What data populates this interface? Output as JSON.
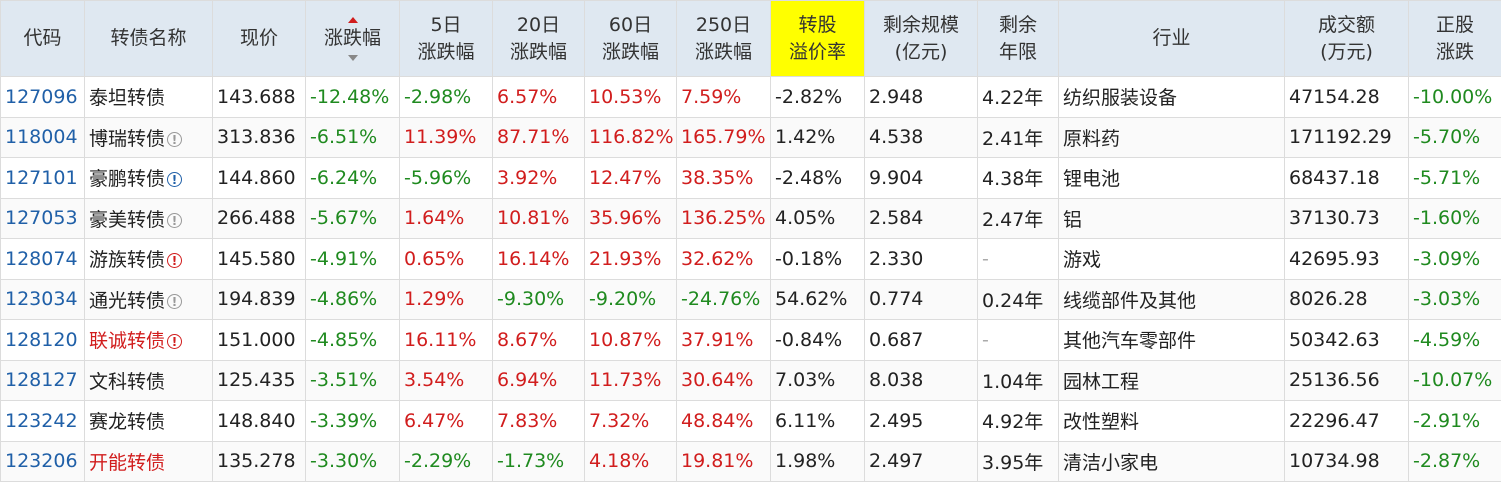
{
  "headers": {
    "code": "代码",
    "name": "转债名称",
    "price": "现价",
    "change": "涨跌幅",
    "chg5": [
      "5日",
      "涨跌幅"
    ],
    "chg20": [
      "20日",
      "涨跌幅"
    ],
    "chg60": [
      "60日",
      "涨跌幅"
    ],
    "chg250": [
      "250日",
      "涨跌幅"
    ],
    "premium": [
      "转股",
      "溢价率"
    ],
    "scale": [
      "剩余规模",
      "(亿元)"
    ],
    "years": [
      "剩余",
      "年限"
    ],
    "industry": "行业",
    "volume": [
      "成交额",
      "(万元)"
    ],
    "stock_chg": [
      "正股",
      "涨跌"
    ]
  },
  "colors": {
    "up": "#d11d1d",
    "down": "#1f8a1f",
    "code": "#2060a8",
    "header_bg": "#dfe8f1",
    "highlight": "#ffff00"
  },
  "rows": [
    {
      "code": "127096",
      "name": "泰坦转债",
      "name_color": "normal",
      "badge": "",
      "badge_color": "",
      "price": "143.688",
      "change": "-12.48%",
      "chg5": "-2.98%",
      "chg20": "6.57%",
      "chg60": "10.53%",
      "chg250": "7.59%",
      "premium": "-2.82%",
      "scale": "2.948",
      "years": "4.22年",
      "industry": "纺织服装设备",
      "volume": "47154.28",
      "stock_chg": "-10.00%"
    },
    {
      "code": "118004",
      "name": "博瑞转债",
      "name_color": "normal",
      "badge": "!",
      "badge_color": "gray",
      "price": "313.836",
      "change": "-6.51%",
      "chg5": "11.39%",
      "chg20": "87.71%",
      "chg60": "116.82%",
      "chg250": "165.79%",
      "premium": "1.42%",
      "scale": "4.538",
      "years": "2.41年",
      "industry": "原料药",
      "volume": "171192.29",
      "stock_chg": "-5.70%"
    },
    {
      "code": "127101",
      "name": "豪鹏转债",
      "name_color": "normal",
      "badge": "!",
      "badge_color": "blue",
      "price": "144.860",
      "change": "-6.24%",
      "chg5": "-5.96%",
      "chg20": "3.92%",
      "chg60": "12.47%",
      "chg250": "38.35%",
      "premium": "-2.48%",
      "scale": "9.904",
      "years": "4.38年",
      "industry": "锂电池",
      "volume": "68437.18",
      "stock_chg": "-5.71%"
    },
    {
      "code": "127053",
      "name": "豪美转债",
      "name_color": "normal",
      "badge": "!",
      "badge_color": "gray",
      "price": "266.488",
      "change": "-5.67%",
      "chg5": "1.64%",
      "chg20": "10.81%",
      "chg60": "35.96%",
      "chg250": "136.25%",
      "premium": "4.05%",
      "scale": "2.584",
      "years": "2.47年",
      "industry": "铝",
      "volume": "37130.73",
      "stock_chg": "-1.60%"
    },
    {
      "code": "128074",
      "name": "游族转债",
      "name_color": "normal",
      "badge": "!",
      "badge_color": "red",
      "price": "145.580",
      "change": "-4.91%",
      "chg5": "0.65%",
      "chg20": "16.14%",
      "chg60": "21.93%",
      "chg250": "32.62%",
      "premium": "-0.18%",
      "scale": "2.330",
      "years": "-",
      "industry": "游戏",
      "volume": "42695.93",
      "stock_chg": "-3.09%"
    },
    {
      "code": "123034",
      "name": "通光转债",
      "name_color": "normal",
      "badge": "!",
      "badge_color": "gray",
      "price": "194.839",
      "change": "-4.86%",
      "chg5": "1.29%",
      "chg20": "-9.30%",
      "chg60": "-9.20%",
      "chg250": "-24.76%",
      "premium": "54.62%",
      "scale": "0.774",
      "years": "0.24年",
      "industry": "线缆部件及其他",
      "volume": "8026.28",
      "stock_chg": "-3.03%"
    },
    {
      "code": "128120",
      "name": "联诚转债",
      "name_color": "red",
      "badge": "!",
      "badge_color": "red",
      "price": "151.000",
      "change": "-4.85%",
      "chg5": "16.11%",
      "chg20": "8.67%",
      "chg60": "10.87%",
      "chg250": "37.91%",
      "premium": "-0.84%",
      "scale": "0.687",
      "years": "-",
      "industry": "其他汽车零部件",
      "volume": "50342.63",
      "stock_chg": "-4.59%"
    },
    {
      "code": "128127",
      "name": "文科转债",
      "name_color": "normal",
      "badge": "",
      "badge_color": "",
      "price": "125.435",
      "change": "-3.51%",
      "chg5": "3.54%",
      "chg20": "6.94%",
      "chg60": "11.73%",
      "chg250": "30.64%",
      "premium": "7.03%",
      "scale": "8.038",
      "years": "1.04年",
      "industry": "园林工程",
      "volume": "25136.56",
      "stock_chg": "-10.07%"
    },
    {
      "code": "123242",
      "name": "赛龙转债",
      "name_color": "normal",
      "badge": "",
      "badge_color": "",
      "price": "148.840",
      "change": "-3.39%",
      "chg5": "6.47%",
      "chg20": "7.83%",
      "chg60": "7.32%",
      "chg250": "48.84%",
      "premium": "6.11%",
      "scale": "2.495",
      "years": "4.92年",
      "industry": "改性塑料",
      "volume": "22296.47",
      "stock_chg": "-2.91%"
    },
    {
      "code": "123206",
      "name": "开能转债",
      "name_color": "red",
      "badge": "",
      "badge_color": "",
      "price": "135.278",
      "change": "-3.30%",
      "chg5": "-2.29%",
      "chg20": "-1.73%",
      "chg60": "4.18%",
      "chg250": "19.81%",
      "premium": "1.98%",
      "scale": "2.497",
      "years": "3.95年",
      "industry": "清洁小家电",
      "volume": "10734.98",
      "stock_chg": "-2.87%"
    }
  ]
}
